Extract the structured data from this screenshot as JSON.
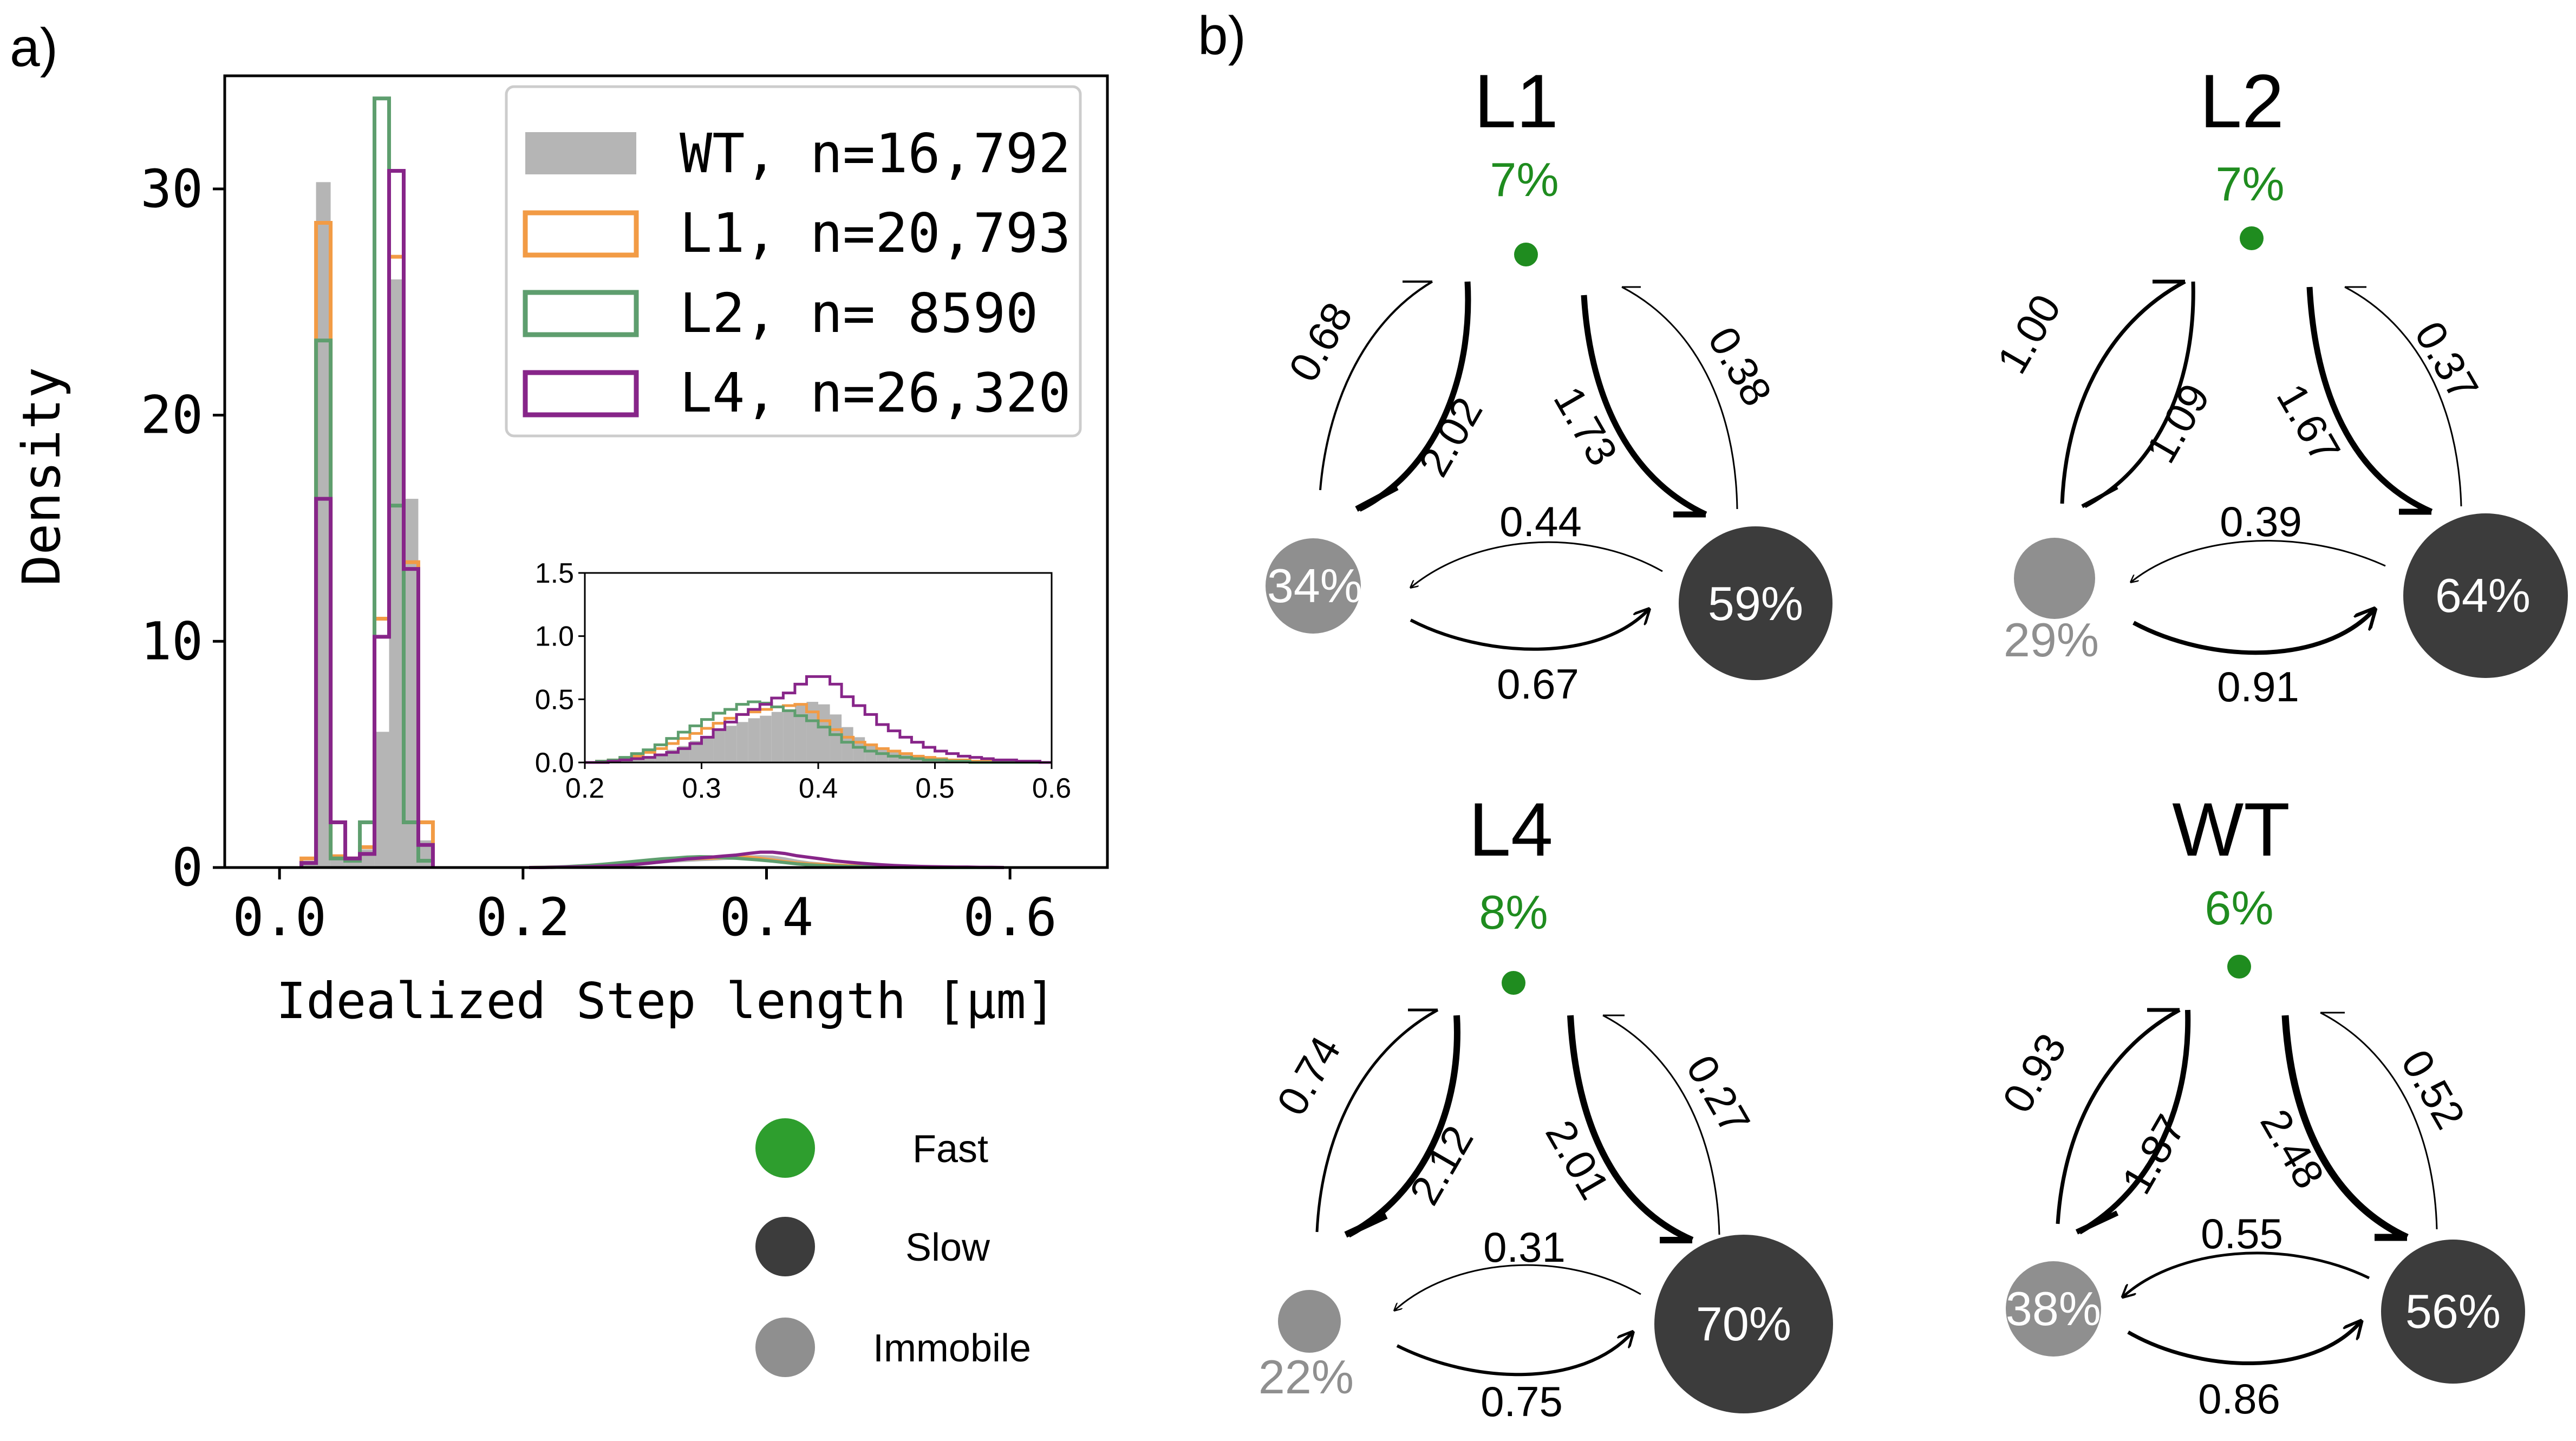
{
  "colors": {
    "WT": "#b5b5b5",
    "L1": "#f29b45",
    "L2": "#5e9e6e",
    "L4": "#872589",
    "fast": "#1f8c1f",
    "slow": "#3c3c3c",
    "immobile": "#8f8f8f"
  },
  "panel_a": {
    "label": "a)",
    "ylabel": "Density",
    "xlabel": "Idealized Step length [μm]",
    "xticks": [
      "0.0",
      "0.2",
      "0.4",
      "0.6"
    ],
    "yticks": [
      "0",
      "10",
      "20",
      "30"
    ],
    "inset_xticks": [
      "0.2",
      "0.3",
      "0.4",
      "0.5",
      "0.6"
    ],
    "inset_yticks": [
      "0.0",
      "0.5",
      "1.0",
      "1.5"
    ],
    "legend": [
      {
        "key": "WT",
        "label": "WT, n=16,792",
        "style": "filled"
      },
      {
        "key": "L1",
        "label": "L1, n=20,793",
        "style": "step"
      },
      {
        "key": "L2",
        "label": "L2, n= 8590",
        "style": "step"
      },
      {
        "key": "L4",
        "label": "L4, n=26,320",
        "style": "step"
      }
    ]
  },
  "panel_b": {
    "label": "b)",
    "state_legend": [
      {
        "key": "fast",
        "label": "Fast"
      },
      {
        "key": "slow",
        "label": "Slow"
      },
      {
        "key": "immobile",
        "label": "Immobile"
      }
    ],
    "diagrams": [
      {
        "id": "L1",
        "title": "L1",
        "fast": "7%",
        "slow": "59%",
        "immobile": "34%",
        "slow_to_fast": "0.38",
        "fast_to_slow": "1.73",
        "immobile_to_fast": "0.68",
        "fast_to_immobile": "2.02",
        "slow_to_immobile": "0.44",
        "immobile_to_slow": "0.67"
      },
      {
        "id": "L2",
        "title": "L2",
        "fast": "7%",
        "slow": "64%",
        "immobile": "29%",
        "slow_to_fast": "0.37",
        "fast_to_slow": "1.67",
        "immobile_to_fast": "1.00",
        "fast_to_immobile": "1.09",
        "slow_to_immobile": "0.39",
        "immobile_to_slow": "0.91"
      },
      {
        "id": "L4",
        "title": "L4",
        "fast": "8%",
        "slow": "70%",
        "immobile": "22%",
        "slow_to_fast": "0.27",
        "fast_to_slow": "2.01",
        "immobile_to_fast": "0.74",
        "fast_to_immobile": "2.12",
        "slow_to_immobile": "0.31",
        "immobile_to_slow": "0.75"
      },
      {
        "id": "WT",
        "title": "WT",
        "fast": "6%",
        "slow": "56%",
        "immobile": "38%",
        "slow_to_fast": "0.52",
        "fast_to_slow": "2.48",
        "immobile_to_fast": "0.93",
        "fast_to_immobile": "1.87",
        "slow_to_immobile": "0.55",
        "immobile_to_slow": "0.86"
      }
    ]
  },
  "chart_data": [
    {
      "type": "bar",
      "title": "",
      "xlabel": "Idealized Step length [μm]",
      "ylabel": "Density",
      "xlim": [
        -0.045,
        0.68
      ],
      "ylim": [
        0,
        35
      ],
      "bin_width": 0.012,
      "series": [
        {
          "name": "WT, n=16,792",
          "key": "WT",
          "style": "filled",
          "x": [
            0.024,
            0.036,
            0.048,
            0.06,
            0.072,
            0.084,
            0.096,
            0.108,
            0.12
          ],
          "values": [
            0.3,
            30.3,
            0.4,
            0.3,
            0.8,
            6.0,
            26.0,
            16.3,
            1.2
          ]
        },
        {
          "name": "L1, n=20,793",
          "key": "L1",
          "style": "step",
          "x": [
            0.024,
            0.036,
            0.048,
            0.06,
            0.072,
            0.084,
            0.096,
            0.108,
            0.12
          ],
          "values": [
            0.4,
            28.5,
            0.5,
            0.4,
            0.9,
            11.0,
            27.0,
            13.5,
            2.0
          ]
        },
        {
          "name": "L2, n= 8590",
          "key": "L2",
          "style": "step",
          "x": [
            0.024,
            0.036,
            0.048,
            0.06,
            0.072,
            0.084,
            0.096,
            0.108,
            0.12
          ],
          "values": [
            0.2,
            23.3,
            0.4,
            0.3,
            2.0,
            34.0,
            16.0,
            2.0,
            0.3
          ]
        },
        {
          "name": "L4, n=26,320",
          "key": "L4",
          "style": "step",
          "x": [
            0.024,
            0.036,
            0.048,
            0.06,
            0.072,
            0.084,
            0.096,
            0.108,
            0.12
          ],
          "values": [
            0.2,
            16.3,
            2.0,
            0.4,
            0.6,
            10.2,
            30.8,
            13.2,
            1.0
          ]
        }
      ],
      "tail_peak_x": 0.4,
      "inset": {
        "xlim": [
          0.2,
          0.6
        ],
        "ylim": [
          0,
          1.5
        ],
        "bin_width": 0.01,
        "x": [
          0.2,
          0.21,
          0.22,
          0.23,
          0.24,
          0.25,
          0.26,
          0.27,
          0.28,
          0.29,
          0.3,
          0.31,
          0.32,
          0.33,
          0.34,
          0.35,
          0.36,
          0.37,
          0.38,
          0.39,
          0.4,
          0.41,
          0.42,
          0.43,
          0.44,
          0.45,
          0.46,
          0.47,
          0.48,
          0.49,
          0.5,
          0.51,
          0.52,
          0.53,
          0.54,
          0.55,
          0.56,
          0.57,
          0.58,
          0.59
        ],
        "series": [
          {
            "key": "WT",
            "values": [
              0.0,
              0.0,
              0.01,
              0.02,
              0.03,
              0.05,
              0.07,
              0.1,
              0.13,
              0.17,
              0.21,
              0.25,
              0.29,
              0.32,
              0.35,
              0.37,
              0.4,
              0.42,
              0.46,
              0.48,
              0.46,
              0.38,
              0.28,
              0.2,
              0.15,
              0.12,
              0.09,
              0.06,
              0.05,
              0.04,
              0.03,
              0.02,
              0.02,
              0.01,
              0.01,
              0.01,
              0.0,
              0.0,
              0.0,
              0.0
            ]
          },
          {
            "key": "L1",
            "values": [
              0.0,
              0.01,
              0.02,
              0.03,
              0.05,
              0.08,
              0.11,
              0.15,
              0.19,
              0.23,
              0.27,
              0.31,
              0.35,
              0.38,
              0.4,
              0.42,
              0.44,
              0.45,
              0.46,
              0.4,
              0.33,
              0.26,
              0.2,
              0.16,
              0.14,
              0.11,
              0.09,
              0.07,
              0.05,
              0.04,
              0.03,
              0.02,
              0.02,
              0.01,
              0.01,
              0.01,
              0.0,
              0.0,
              0.0,
              0.0
            ]
          },
          {
            "key": "L2",
            "values": [
              0.0,
              0.01,
              0.02,
              0.04,
              0.07,
              0.1,
              0.14,
              0.19,
              0.24,
              0.29,
              0.34,
              0.39,
              0.42,
              0.46,
              0.48,
              0.47,
              0.44,
              0.41,
              0.37,
              0.33,
              0.28,
              0.22,
              0.16,
              0.12,
              0.09,
              0.07,
              0.05,
              0.04,
              0.03,
              0.02,
              0.02,
              0.01,
              0.01,
              0.0,
              0.0,
              0.0,
              0.0,
              0.0,
              0.0,
              0.0
            ]
          },
          {
            "key": "L4",
            "values": [
              0.0,
              0.0,
              0.01,
              0.02,
              0.03,
              0.04,
              0.06,
              0.08,
              0.11,
              0.15,
              0.2,
              0.26,
              0.32,
              0.38,
              0.42,
              0.46,
              0.51,
              0.55,
              0.62,
              0.68,
              0.68,
              0.62,
              0.52,
              0.45,
              0.38,
              0.3,
              0.25,
              0.2,
              0.16,
              0.12,
              0.09,
              0.07,
              0.05,
              0.04,
              0.03,
              0.02,
              0.02,
              0.01,
              0.01,
              0.0
            ]
          }
        ]
      }
    }
  ]
}
